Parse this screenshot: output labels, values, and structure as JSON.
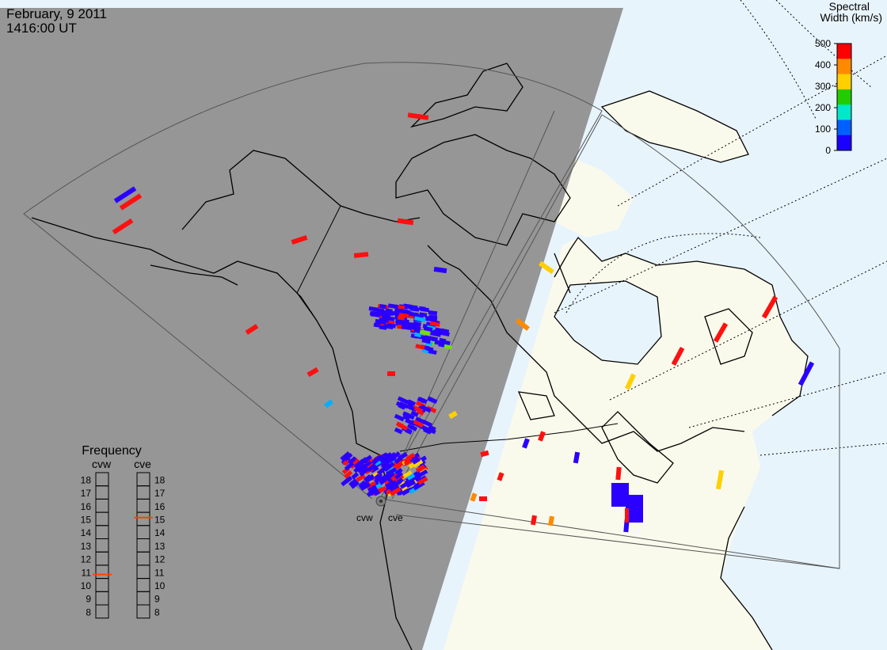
{
  "header": {
    "date": "February, 9 2011",
    "time": "1416:00 UT"
  },
  "colorbar": {
    "title_line1": "Spectral",
    "title_line2": "Width (km/s)",
    "ticks": [
      500,
      400,
      300,
      200,
      100,
      0
    ],
    "range": [
      0,
      500
    ],
    "colors": [
      "#ff0000",
      "#ff8a00",
      "#ffd000",
      "#22cc00",
      "#00e8c8",
      "#0060ff",
      "#1a00ff"
    ]
  },
  "radars": {
    "west": {
      "code": "cvw"
    },
    "east": {
      "code": "cve"
    }
  },
  "frequency": {
    "title": "Frequency",
    "left_label": "cvw",
    "right_label": "cve",
    "scale": [
      18,
      17,
      16,
      15,
      14,
      13,
      12,
      11,
      10,
      9,
      8
    ],
    "cvw_value": 10.8,
    "cve_value": 15.1,
    "marker_color": "#ff4400"
  },
  "colors": {
    "night": "#969696",
    "day_land": "#fafaec",
    "day_ocean": "#e8f4fc",
    "coast": "#000000",
    "fov": "#555555"
  }
}
